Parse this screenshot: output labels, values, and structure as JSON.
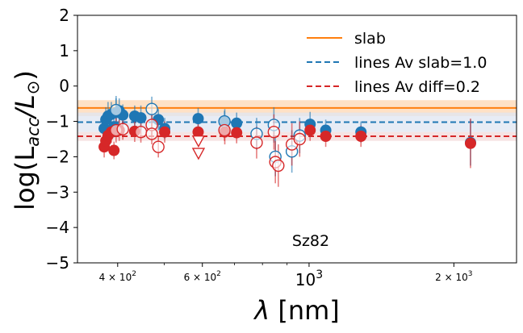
{
  "chart_data": {
    "type": "scatter",
    "xscale": "log",
    "xlim": [
      330,
      2700
    ],
    "ylim": [
      -5,
      2
    ],
    "ylabel_prefix": "log(L",
    "ylabel_sub": "acc",
    "ylabel_mid": "/L",
    "ylabel_sym": "⊙",
    "ylabel_suffix": ")",
    "xlabel_sym": "λ",
    "xlabel_rest": " [nm]",
    "annotation": "Sz82",
    "yticks": [
      2,
      1,
      0,
      -1,
      -2,
      -3,
      -4,
      -5
    ],
    "ytick_labels": [
      "2",
      "1",
      "0",
      "−1",
      "−2",
      "−3",
      "−4",
      "−5"
    ],
    "xticks_major": [
      {
        "value": 400,
        "base": "4 × 10",
        "exp": "2"
      },
      {
        "value": 600,
        "base": "6 × 10",
        "exp": "2"
      },
      {
        "value": 1000,
        "base": "10",
        "exp": "3"
      },
      {
        "value": 2000,
        "base": "2 × 10",
        "exp": "3"
      }
    ],
    "xticks_minor": [
      500,
      700,
      800,
      900
    ],
    "legend": [
      {
        "label": "slab",
        "style": "solid",
        "color": "#ff7f0e"
      },
      {
        "label": "lines Av slab=1.0",
        "style": "dashed",
        "color": "#1f77b4"
      },
      {
        "label": "lines Av diff=0.2",
        "style": "dashed",
        "color": "#d62728"
      }
    ],
    "lines": [
      {
        "name": "slab",
        "y": -0.62,
        "band": [
          -0.4,
          -0.85
        ],
        "color": "#ff7f0e",
        "band_color": "#fdd7b3"
      },
      {
        "name": "lines Av slab=1.0",
        "y": -1.02,
        "band": [
          -0.75,
          -1.3
        ],
        "color": "#1f77b4",
        "band_color": "#dfe6f2"
      },
      {
        "name": "lines Av diff=0.2",
        "y": -1.42,
        "band": [
          -1.3,
          -1.55
        ],
        "color": "#d62728",
        "band_color": "#f3d9da"
      }
    ],
    "series": [
      {
        "name": "lines Av slab=1.0 (filled)",
        "color": "#1f77b4",
        "fill": true,
        "points": [
          {
            "x": 375,
            "y": -1.2,
            "err": 0.3
          },
          {
            "x": 378,
            "y": -0.95,
            "err": 0.35
          },
          {
            "x": 382,
            "y": -0.85,
            "err": 0.4
          },
          {
            "x": 388,
            "y": -0.8,
            "err": 0.35
          },
          {
            "x": 393,
            "y": -1.15,
            "err": 0.3
          },
          {
            "x": 397,
            "y": -0.75,
            "err": 0.4
          },
          {
            "x": 403,
            "y": -0.7,
            "err": 0.35
          },
          {
            "x": 410,
            "y": -0.82,
            "err": 0.3
          },
          {
            "x": 434,
            "y": -0.85,
            "err": 0.3
          },
          {
            "x": 447,
            "y": -0.9,
            "err": 0.35
          },
          {
            "x": 486,
            "y": -0.95,
            "err": 0.3
          },
          {
            "x": 501,
            "y": -1.2,
            "err": 0.3
          },
          {
            "x": 588,
            "y": -0.92,
            "err": 0.3
          },
          {
            "x": 668,
            "y": -1.0,
            "err": 0.35
          },
          {
            "x": 707,
            "y": -1.05,
            "err": 0.3
          },
          {
            "x": 1005,
            "y": -1.08,
            "err": 0.35
          },
          {
            "x": 1083,
            "y": -1.25,
            "err": 0.3
          },
          {
            "x": 1282,
            "y": -1.3,
            "err": 0.3
          },
          {
            "x": 2166,
            "y": -1.6,
            "err": 0.65
          }
        ]
      },
      {
        "name": "lines Av slab=1.0 (open)",
        "color": "#1f77b4",
        "fill": false,
        "points": [
          {
            "x": 397,
            "y": -0.68,
            "err": 0.4
          },
          {
            "x": 471,
            "y": -0.65,
            "err": 0.35
          },
          {
            "x": 667,
            "y": -1.0,
            "err": 0.3
          },
          {
            "x": 778,
            "y": -1.35,
            "err": 0.45
          },
          {
            "x": 845,
            "y": -1.1,
            "err": 0.5
          },
          {
            "x": 851,
            "y": -2.0,
            "err": 0.55
          },
          {
            "x": 921,
            "y": -1.85,
            "err": 0.6
          },
          {
            "x": 956,
            "y": -1.4,
            "err": 0.5
          }
        ]
      },
      {
        "name": "lines Av diff=0.2 (filled)",
        "color": "#d62728",
        "fill": true,
        "points": [
          {
            "x": 375,
            "y": -1.72,
            "err": 0.3
          },
          {
            "x": 378,
            "y": -1.55,
            "err": 0.3
          },
          {
            "x": 382,
            "y": -1.4,
            "err": 0.3
          },
          {
            "x": 388,
            "y": -1.3,
            "err": 0.3
          },
          {
            "x": 393,
            "y": -1.82,
            "err": 0.25
          },
          {
            "x": 403,
            "y": -1.25,
            "err": 0.3
          },
          {
            "x": 434,
            "y": -1.28,
            "err": 0.3
          },
          {
            "x": 501,
            "y": -1.3,
            "err": 0.3
          },
          {
            "x": 588,
            "y": -1.3,
            "err": 0.3
          },
          {
            "x": 668,
            "y": -1.3,
            "err": 0.35
          },
          {
            "x": 707,
            "y": -1.32,
            "err": 0.3
          },
          {
            "x": 1005,
            "y": -1.25,
            "err": 0.3
          },
          {
            "x": 1083,
            "y": -1.42,
            "err": 0.3
          },
          {
            "x": 1282,
            "y": -1.42,
            "err": 0.3
          },
          {
            "x": 2166,
            "y": -1.62,
            "err": 0.7
          }
        ]
      },
      {
        "name": "lines Av diff=0.2 (open)",
        "color": "#d62728",
        "fill": false,
        "points": [
          {
            "x": 397,
            "y": -1.25,
            "err": 0.35
          },
          {
            "x": 410,
            "y": -1.22,
            "err": 0.3
          },
          {
            "x": 447,
            "y": -1.3,
            "err": 0.3
          },
          {
            "x": 471,
            "y": -1.1,
            "err": 0.3
          },
          {
            "x": 471,
            "y": -1.35,
            "err": 0.3
          },
          {
            "x": 486,
            "y": -1.72,
            "err": 0.3
          },
          {
            "x": 667,
            "y": -1.25,
            "err": 0.3
          },
          {
            "x": 778,
            "y": -1.6,
            "err": 0.45
          },
          {
            "x": 845,
            "y": -1.3,
            "err": 0.5
          },
          {
            "x": 851,
            "y": -2.15,
            "err": 0.6
          },
          {
            "x": 863,
            "y": -2.25,
            "err": 0.6
          },
          {
            "x": 921,
            "y": -1.65,
            "err": 0.6
          },
          {
            "x": 956,
            "y": -1.5,
            "err": 0.5
          }
        ]
      }
    ],
    "upper_limits": [
      {
        "x": 589,
        "y": -1.55,
        "color": "#d62728"
      },
      {
        "x": 589,
        "y": -1.9,
        "color": "#d62728"
      }
    ]
  }
}
